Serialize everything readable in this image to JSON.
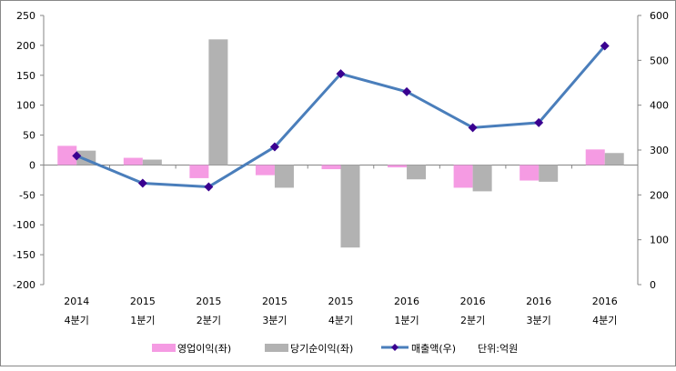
{
  "chart_data": {
    "type": "bar+line",
    "categories": [
      [
        "2014",
        "4분기"
      ],
      [
        "2015",
        "1분기"
      ],
      [
        "2015",
        "2분기"
      ],
      [
        "2015",
        "3분기"
      ],
      [
        "2015",
        "4분기"
      ],
      [
        "2016",
        "1분기"
      ],
      [
        "2016",
        "2분기"
      ],
      [
        "2016",
        "3분기"
      ],
      [
        "2016",
        "4분기"
      ]
    ],
    "series": [
      {
        "name": "영업이익(좌)",
        "type": "bar",
        "axis": "left",
        "color": "#f59be3",
        "values": [
          32,
          12,
          -22,
          -17,
          -7,
          -4,
          -38,
          -26,
          26
        ]
      },
      {
        "name": "당기순이익(좌)",
        "type": "bar",
        "axis": "left",
        "color": "#b2b2b2",
        "values": [
          24,
          9,
          210,
          -38,
          -138,
          -24,
          -44,
          -28,
          20
        ]
      },
      {
        "name": "매출액(우)",
        "type": "line",
        "axis": "right",
        "color": "#4a7ebb",
        "marker_color": "#3a0090",
        "values": [
          287,
          226,
          218,
          307,
          470,
          430,
          350,
          361,
          532
        ]
      }
    ],
    "left_axis": {
      "min": -200,
      "max": 250,
      "step": 50,
      "ticks": [
        "-200",
        "-150",
        "-100",
        "-50",
        "0",
        "50",
        "100",
        "150",
        "200",
        "250"
      ]
    },
    "right_axis": {
      "min": 0,
      "max": 600,
      "step": 100,
      "ticks": [
        "0",
        "100",
        "200",
        "300",
        "400",
        "500",
        "600"
      ]
    },
    "unit_note": "단위:억원",
    "legend_placement": "bottom",
    "grid": false
  }
}
